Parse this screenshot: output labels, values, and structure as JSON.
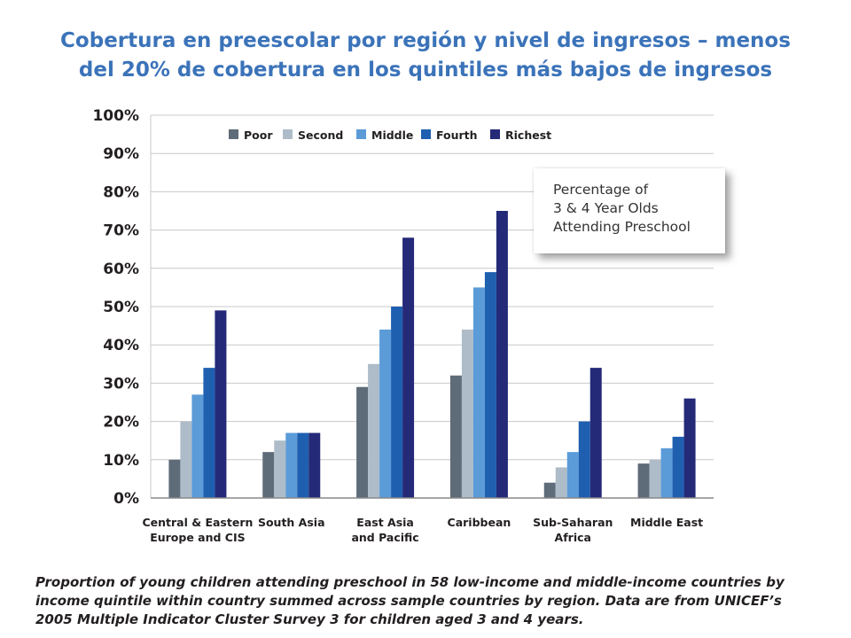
{
  "title": {
    "line1": "Cobertura en preescolar por región y nivel de ingresos – menos",
    "line2": "del 20% de cobertura en los quintiles más bajos de ingresos"
  },
  "callout": {
    "line1": "Percentage of",
    "line2": "3 & 4 Year Olds",
    "line3": "Attending Preschool"
  },
  "caption": {
    "line1": "Proportion of young children attending preschool in 58 low-income and middle-income countries by",
    "line2": "income quintile within country summed across sample countries by region. Data are from UNICEF’s",
    "line3": "2005 Multiple Indicator Cluster Survey 3 for children aged 3 and 4 years."
  },
  "chart_data": {
    "type": "bar",
    "categories": [
      [
        "Central & Eastern",
        "Europe and CIS"
      ],
      [
        "South Asia"
      ],
      [
        "East Asia",
        "and Pacific"
      ],
      [
        "Caribbean"
      ],
      [
        "Sub-Saharan",
        "Africa"
      ],
      [
        "Middle East"
      ]
    ],
    "series": [
      {
        "name": "Poor",
        "color": "#5e6b78",
        "values": [
          10,
          12,
          29,
          32,
          4,
          9
        ]
      },
      {
        "name": "Second",
        "color": "#adbcc8",
        "values": [
          20,
          15,
          35,
          44,
          8,
          10
        ]
      },
      {
        "name": "Middle",
        "color": "#5b9bd8",
        "values": [
          27,
          17,
          44,
          55,
          12,
          13
        ]
      },
      {
        "name": "Fourth",
        "color": "#1f5fb0",
        "values": [
          34,
          17,
          50,
          59,
          20,
          16
        ]
      },
      {
        "name": "Richest",
        "color": "#242a78",
        "values": [
          49,
          17,
          68,
          75,
          34,
          26
        ]
      }
    ],
    "yticks": [
      "0%",
      "10%",
      "20%",
      "30%",
      "40%",
      "50%",
      "60%",
      "70%",
      "80%",
      "90%",
      "100%"
    ],
    "ylim": [
      0,
      100
    ],
    "grid": true,
    "legend": "top"
  }
}
